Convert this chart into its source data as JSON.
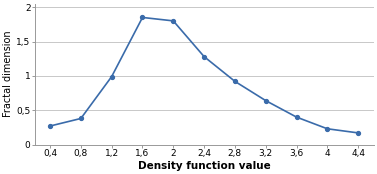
{
  "x": [
    0.4,
    0.8,
    1.2,
    1.6,
    2.0,
    2.4,
    2.8,
    3.2,
    3.6,
    4.0,
    4.4
  ],
  "y": [
    0.27,
    0.38,
    0.99,
    1.85,
    1.8,
    1.28,
    0.92,
    0.64,
    0.4,
    0.23,
    0.17
  ],
  "line_color": "#3A6BAA",
  "marker": "o",
  "marker_size": 2.8,
  "linewidth": 1.2,
  "xlabel": "Density function value",
  "ylabel": "Fractal dimension",
  "xlim": [
    0.2,
    4.6
  ],
  "ylim": [
    0,
    2.05
  ],
  "xtick_labels": [
    "0,4",
    "0,8",
    "1,2",
    "1,6",
    "2",
    "2,4",
    "2,8",
    "3,2",
    "3,6",
    "4",
    "4,4"
  ],
  "xtick_values": [
    0.4,
    0.8,
    1.2,
    1.6,
    2.0,
    2.4,
    2.8,
    3.2,
    3.6,
    4.0,
    4.4
  ],
  "ytick_labels": [
    "0",
    "0,5",
    "1",
    "1,5",
    "2"
  ],
  "ytick_values": [
    0,
    0.5,
    1.0,
    1.5,
    2.0
  ],
  "xlabel_fontsize": 7.5,
  "ylabel_fontsize": 7.0,
  "tick_fontsize": 6.5,
  "grid_color": "#c8c8c8",
  "background_color": "#ffffff",
  "spine_color": "#999999"
}
